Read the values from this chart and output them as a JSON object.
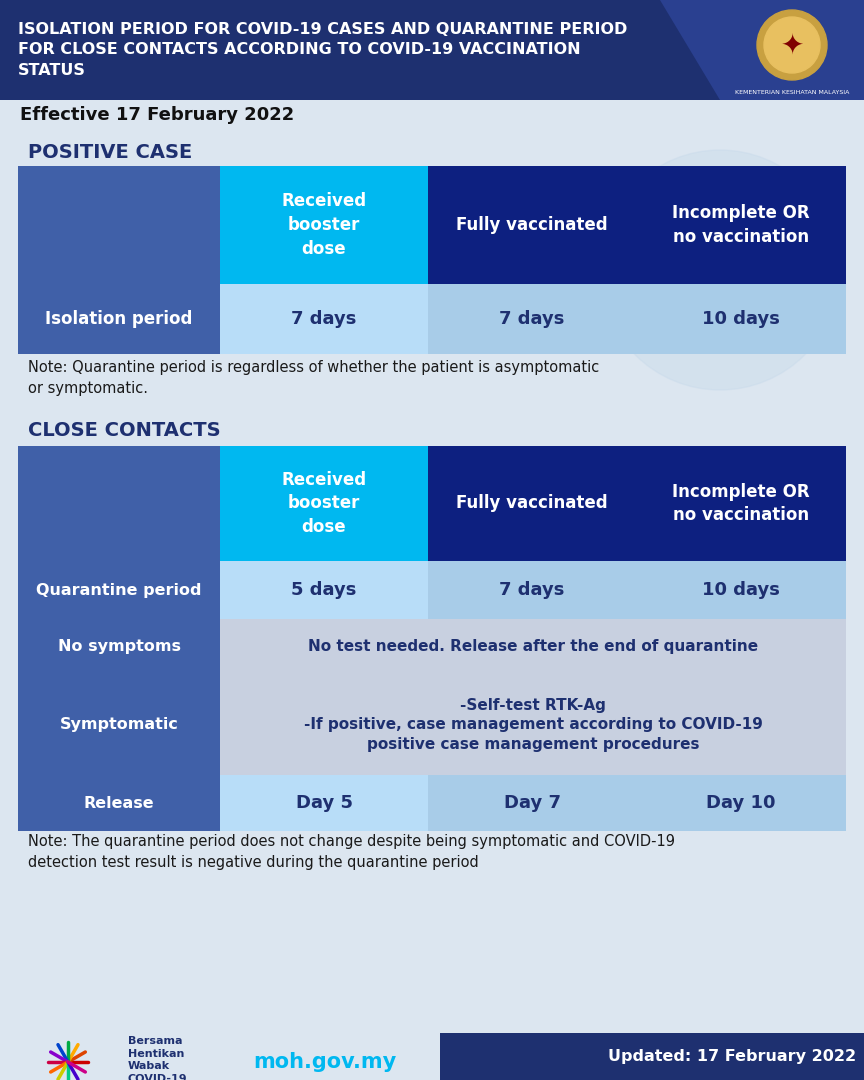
{
  "title_line1": "ISOLATION PERIOD FOR COVID-19 CASES AND QUARANTINE PERIOD",
  "title_line2": "FOR CLOSE CONTACTS ACCORDING TO COVID-19 VACCINATION",
  "title_line3": "STATUS",
  "effective_date": "Effective 17 February 2022",
  "updated_date": "Updated: 17 February 2022",
  "website": "moh.gov.my",
  "bg_color": "#dce6f0",
  "header_bg": "#1e3070",
  "col_booster_color": "#00b8f0",
  "col_full_color": "#0d2080",
  "col_incomplete_color": "#0d2080",
  "col_label_color": "#4060a8",
  "col_light1": "#b8ddf8",
  "col_light2": "#a8cce8",
  "col_light3": "#a8cce8",
  "symptomatic_bg": "#c8d0e0",
  "nosymptoms_bg": "#c8d0e0",
  "footer_dark": "#1e3070",
  "white": "#ffffff",
  "section_title_color": "#1e3070",
  "note_color": "#1a1a1a",
  "text_dark": "#1e3070",
  "section_positive_title": "POSITIVE CASE",
  "section_contacts_title": "CLOSE CONTACTS",
  "col_headers": [
    "Received\nbooster\ndose",
    "Fully vaccinated",
    "Incomplete OR\nno vaccination"
  ],
  "pos_isolation_label": "Isolation period",
  "pos_isolation_values": [
    "7 days",
    "7 days",
    "10 days"
  ],
  "pos_note": "Note: Quarantine period is regardless of whether the patient is asymptomatic\nor symptomatic.",
  "cc_row_labels": [
    "Quarantine period",
    "No symptoms",
    "Symptomatic",
    "Release"
  ],
  "cc_quarantine_values": [
    "5 days",
    "7 days",
    "10 days"
  ],
  "cc_no_symptoms_text": "No test needed. Release after the end of quarantine",
  "cc_symptomatic_text": "-Self-test RTK-Ag\n-If positive, case management according to COVID-19\npositive case management procedures",
  "cc_release_values": [
    "Day 5",
    "Day 7",
    "Day 10"
  ],
  "cc_note": "Note: The quarantine period does not change despite being symptomatic and COVID-19\ndetection test result is negative during the quarantine period"
}
